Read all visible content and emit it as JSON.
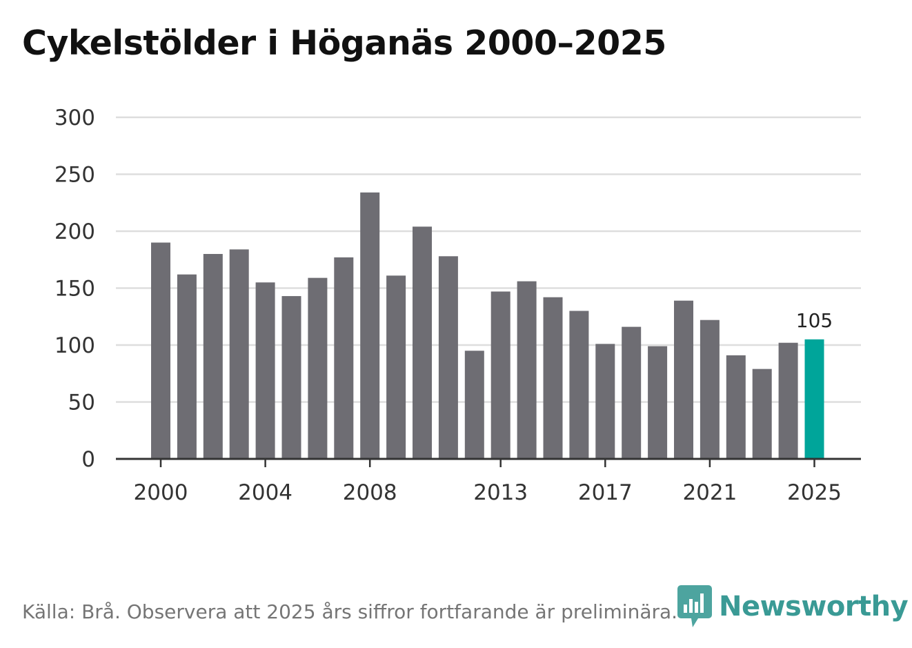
{
  "title": "Cykelstölder i Höganäs 2000–2025",
  "source": "Källa: Brå. Observera att 2025 års siffror fortfarande är preliminära.",
  "logo": {
    "name": "Newsworthy"
  },
  "colors": {
    "bar": "#6e6d73",
    "highlight": "#00a59a",
    "grid": "#dddddd",
    "axis": "#333333",
    "brand": "#3a9a95"
  },
  "chart_data": {
    "type": "bar",
    "title": "Cykelstölder i Höganäs 2000–2025",
    "xlabel": "",
    "ylabel": "",
    "categories": [
      "2000",
      "2001",
      "2002",
      "2003",
      "2004",
      "2005",
      "2006",
      "2007",
      "2008",
      "2009",
      "2010",
      "2011",
      "2012",
      "2013",
      "2014",
      "2015",
      "2016",
      "2017",
      "2018",
      "2019",
      "2020",
      "2021",
      "2022",
      "2023",
      "2024",
      "2025"
    ],
    "values": [
      190,
      162,
      180,
      184,
      155,
      143,
      159,
      177,
      234,
      161,
      204,
      178,
      95,
      147,
      156,
      142,
      130,
      101,
      116,
      99,
      139,
      122,
      91,
      79,
      102,
      105
    ],
    "ylim": [
      0,
      300
    ],
    "yticks": [
      "0",
      "50",
      "100",
      "150",
      "200",
      "250",
      "300"
    ],
    "xtick_labels": [
      "2000",
      "2004",
      "2008",
      "2013",
      "2017",
      "2021",
      "2025"
    ],
    "highlight_index": 25,
    "annotations": [
      {
        "category": "2025",
        "label": "105"
      }
    ],
    "grid": true
  }
}
